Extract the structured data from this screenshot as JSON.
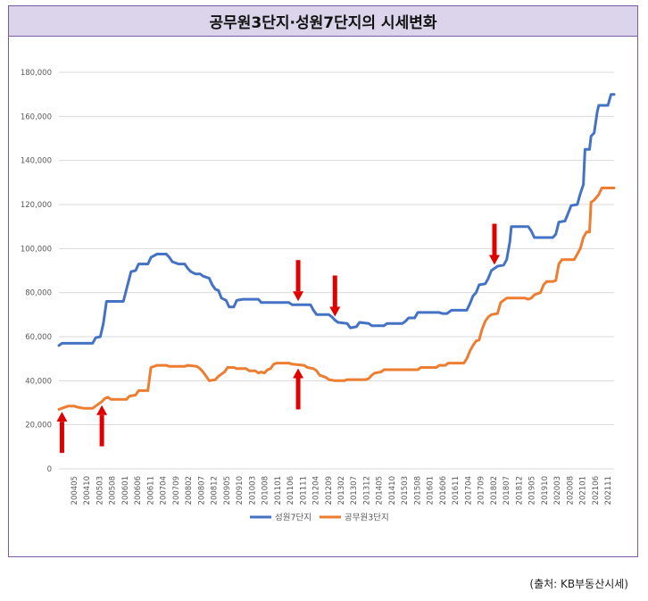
{
  "chart_data": {
    "type": "line",
    "title": "공무원3단지·성원7단지의  시세변화",
    "xlabel": "",
    "ylabel": "",
    "ylim": [
      0,
      180000
    ],
    "yticks": [
      0,
      20000,
      40000,
      60000,
      80000,
      100000,
      120000,
      140000,
      160000,
      180000
    ],
    "ytick_labels": [
      "0",
      "20,000",
      "40,000",
      "60,000",
      "80,000",
      "100,000",
      "120,000",
      "140,000",
      "160,000",
      "180,000"
    ],
    "xlim": [
      2004.0,
      2022.1
    ],
    "xtick_labels": [
      "200405",
      "200410",
      "200503",
      "200508",
      "200601",
      "200606",
      "200611",
      "200704",
      "200709",
      "200802",
      "200807",
      "200812",
      "200905",
      "200910",
      "201003",
      "201008",
      "201101",
      "201106",
      "201111",
      "201204",
      "201209",
      "201302",
      "201307",
      "201312",
      "201405",
      "201410",
      "201503",
      "201508",
      "201601",
      "201606",
      "201611",
      "201704",
      "201709",
      "201802",
      "201807",
      "201812",
      "201905",
      "201910",
      "202003",
      "202008",
      "202101",
      "202106",
      "202111"
    ],
    "grid": true,
    "legend_position": "bottom",
    "series": [
      {
        "name": "성원7단지",
        "color": "#4472c4",
        "points": [
          [
            2004.0,
            56000
          ],
          [
            2004.1,
            57000
          ],
          [
            2004.5,
            57000
          ],
          [
            2005.0,
            57000
          ],
          [
            2005.1,
            57000
          ],
          [
            2005.2,
            59500
          ],
          [
            2005.35,
            60000
          ],
          [
            2005.45,
            66000
          ],
          [
            2005.55,
            76000
          ],
          [
            2005.9,
            76000
          ],
          [
            2006.1,
            76000
          ],
          [
            2006.25,
            84000
          ],
          [
            2006.35,
            89500
          ],
          [
            2006.5,
            90000
          ],
          [
            2006.6,
            93000
          ],
          [
            2006.9,
            93000
          ],
          [
            2007.0,
            96000
          ],
          [
            2007.2,
            97500
          ],
          [
            2007.5,
            97500
          ],
          [
            2007.6,
            96000
          ],
          [
            2007.7,
            94000
          ],
          [
            2007.9,
            93000
          ],
          [
            2008.1,
            93000
          ],
          [
            2008.2,
            91000
          ],
          [
            2008.3,
            89500
          ],
          [
            2008.45,
            88500
          ],
          [
            2008.6,
            88500
          ],
          [
            2008.7,
            87500
          ],
          [
            2008.8,
            87000
          ],
          [
            2008.9,
            86500
          ],
          [
            2009.0,
            83500
          ],
          [
            2009.1,
            81500
          ],
          [
            2009.2,
            81000
          ],
          [
            2009.3,
            77500
          ],
          [
            2009.45,
            76500
          ],
          [
            2009.55,
            73500
          ],
          [
            2009.7,
            73500
          ],
          [
            2009.8,
            76500
          ],
          [
            2010.0,
            77000
          ],
          [
            2010.5,
            77000
          ],
          [
            2010.6,
            75500
          ],
          [
            2011.5,
            75500
          ],
          [
            2011.6,
            74500
          ],
          [
            2012.2,
            74500
          ],
          [
            2012.3,
            72000
          ],
          [
            2012.4,
            70000
          ],
          [
            2012.8,
            70000
          ],
          [
            2012.9,
            69000
          ],
          [
            2013.0,
            67500
          ],
          [
            2013.1,
            66500
          ],
          [
            2013.4,
            66000
          ],
          [
            2013.5,
            64000
          ],
          [
            2013.7,
            64500
          ],
          [
            2013.8,
            66500
          ],
          [
            2014.1,
            66000
          ],
          [
            2014.2,
            65000
          ],
          [
            2014.6,
            65000
          ],
          [
            2014.7,
            66000
          ],
          [
            2015.2,
            66000
          ],
          [
            2015.3,
            67000
          ],
          [
            2015.4,
            68500
          ],
          [
            2015.6,
            68500
          ],
          [
            2015.7,
            71000
          ],
          [
            2016.4,
            71000
          ],
          [
            2016.5,
            70500
          ],
          [
            2016.65,
            70500
          ],
          [
            2016.7,
            71000
          ],
          [
            2016.8,
            72000
          ],
          [
            2017.3,
            72000
          ],
          [
            2017.4,
            75000
          ],
          [
            2017.5,
            78500
          ],
          [
            2017.6,
            80000
          ],
          [
            2017.7,
            83500
          ],
          [
            2017.9,
            84000
          ],
          [
            2018.0,
            86500
          ],
          [
            2018.1,
            90000
          ],
          [
            2018.3,
            92000
          ],
          [
            2018.5,
            92500
          ],
          [
            2018.6,
            95000
          ],
          [
            2018.7,
            103000
          ],
          [
            2018.75,
            110000
          ],
          [
            2019.3,
            110000
          ],
          [
            2019.4,
            108000
          ],
          [
            2019.5,
            105000
          ],
          [
            2020.1,
            105000
          ],
          [
            2020.2,
            106500
          ],
          [
            2020.3,
            112000
          ],
          [
            2020.5,
            112500
          ],
          [
            2020.6,
            116000
          ],
          [
            2020.7,
            119500
          ],
          [
            2020.9,
            120000
          ],
          [
            2021.0,
            125000
          ],
          [
            2021.1,
            129000
          ],
          [
            2021.15,
            145000
          ],
          [
            2021.3,
            145000
          ],
          [
            2021.35,
            151000
          ],
          [
            2021.45,
            152500
          ],
          [
            2021.55,
            162000
          ],
          [
            2021.6,
            165000
          ],
          [
            2021.9,
            165000
          ],
          [
            2022.0,
            170000
          ],
          [
            2022.1,
            170000
          ]
        ]
      },
      {
        "name": "공무원3단지",
        "color": "#ed7d31",
        "points": [
          [
            2004.0,
            27000
          ],
          [
            2004.1,
            27500
          ],
          [
            2004.3,
            28500
          ],
          [
            2004.5,
            28500
          ],
          [
            2004.6,
            28000
          ],
          [
            2004.8,
            27500
          ],
          [
            2005.1,
            27500
          ],
          [
            2005.2,
            28500
          ],
          [
            2005.3,
            29500
          ],
          [
            2005.4,
            30500
          ],
          [
            2005.5,
            32000
          ],
          [
            2005.6,
            32500
          ],
          [
            2005.7,
            31500
          ],
          [
            2005.8,
            31500
          ],
          [
            2006.0,
            31500
          ],
          [
            2006.2,
            31500
          ],
          [
            2006.3,
            33000
          ],
          [
            2006.5,
            33500
          ],
          [
            2006.6,
            35500
          ],
          [
            2006.9,
            35500
          ],
          [
            2007.0,
            46000
          ],
          [
            2007.2,
            47000
          ],
          [
            2007.5,
            47000
          ],
          [
            2007.6,
            46500
          ],
          [
            2008.1,
            46500
          ],
          [
            2008.2,
            47000
          ],
          [
            2008.5,
            46500
          ],
          [
            2008.6,
            45500
          ],
          [
            2008.7,
            44000
          ],
          [
            2008.8,
            42000
          ],
          [
            2008.9,
            40000
          ],
          [
            2009.1,
            40500
          ],
          [
            2009.2,
            42000
          ],
          [
            2009.3,
            43000
          ],
          [
            2009.4,
            44000
          ],
          [
            2009.5,
            46000
          ],
          [
            2009.7,
            46000
          ],
          [
            2009.8,
            45500
          ],
          [
            2010.1,
            45500
          ],
          [
            2010.2,
            44500
          ],
          [
            2010.4,
            44500
          ],
          [
            2010.5,
            43500
          ],
          [
            2010.6,
            44000
          ],
          [
            2010.7,
            43500
          ],
          [
            2010.8,
            45000
          ],
          [
            2010.9,
            45500
          ],
          [
            2011.0,
            47500
          ],
          [
            2011.1,
            48000
          ],
          [
            2011.5,
            48000
          ],
          [
            2011.6,
            47500
          ],
          [
            2012.0,
            47000
          ],
          [
            2012.1,
            46000
          ],
          [
            2012.3,
            45500
          ],
          [
            2012.4,
            44500
          ],
          [
            2012.5,
            42500
          ],
          [
            2012.7,
            41500
          ],
          [
            2012.8,
            40500
          ],
          [
            2013.0,
            40000
          ],
          [
            2013.3,
            40000
          ],
          [
            2013.4,
            40500
          ],
          [
            2014.0,
            40500
          ],
          [
            2014.1,
            41000
          ],
          [
            2014.2,
            42500
          ],
          [
            2014.3,
            43500
          ],
          [
            2014.5,
            44000
          ],
          [
            2014.6,
            45000
          ],
          [
            2015.7,
            45000
          ],
          [
            2015.8,
            46000
          ],
          [
            2016.3,
            46000
          ],
          [
            2016.4,
            47000
          ],
          [
            2016.6,
            47000
          ],
          [
            2016.7,
            48000
          ],
          [
            2017.2,
            48000
          ],
          [
            2017.3,
            50000
          ],
          [
            2017.4,
            53500
          ],
          [
            2017.5,
            56000
          ],
          [
            2017.6,
            58000
          ],
          [
            2017.7,
            58500
          ],
          [
            2017.8,
            63500
          ],
          [
            2017.9,
            67000
          ],
          [
            2018.0,
            69000
          ],
          [
            2018.1,
            70000
          ],
          [
            2018.3,
            70500
          ],
          [
            2018.4,
            75500
          ],
          [
            2018.5,
            76500
          ],
          [
            2018.6,
            77500
          ],
          [
            2019.2,
            77500
          ],
          [
            2019.3,
            77000
          ],
          [
            2019.4,
            77500
          ],
          [
            2019.5,
            79000
          ],
          [
            2019.7,
            80000
          ],
          [
            2019.8,
            83500
          ],
          [
            2019.9,
            85000
          ],
          [
            2020.1,
            85000
          ],
          [
            2020.2,
            85500
          ],
          [
            2020.3,
            93000
          ],
          [
            2020.4,
            95000
          ],
          [
            2020.8,
            95000
          ],
          [
            2020.9,
            97500
          ],
          [
            2021.0,
            100000
          ],
          [
            2021.1,
            105000
          ],
          [
            2021.2,
            107500
          ],
          [
            2021.3,
            107500
          ],
          [
            2021.35,
            121000
          ],
          [
            2021.45,
            122000
          ],
          [
            2021.6,
            124500
          ],
          [
            2021.7,
            127500
          ],
          [
            2022.1,
            127500
          ]
        ]
      }
    ],
    "annotations": [
      {
        "type": "arrow",
        "direction": "up",
        "x": 2004.1,
        "target_series": "공무원3단지"
      },
      {
        "type": "arrow",
        "direction": "up",
        "x": 2005.4,
        "target_series": "공무원3단지"
      },
      {
        "type": "arrow",
        "direction": "down",
        "x": 2011.8,
        "target_series": "성원7단지"
      },
      {
        "type": "arrow",
        "direction": "up",
        "x": 2011.8,
        "target_series": "공무원3단지"
      },
      {
        "type": "arrow",
        "direction": "down",
        "x": 2013.0,
        "target_series": "성원7단지"
      },
      {
        "type": "arrow",
        "direction": "down",
        "x": 2018.2,
        "target_series": "성원7단지"
      }
    ],
    "arrow_color": "#e00000"
  },
  "source_text": "(출처:  KB부동산시세)"
}
